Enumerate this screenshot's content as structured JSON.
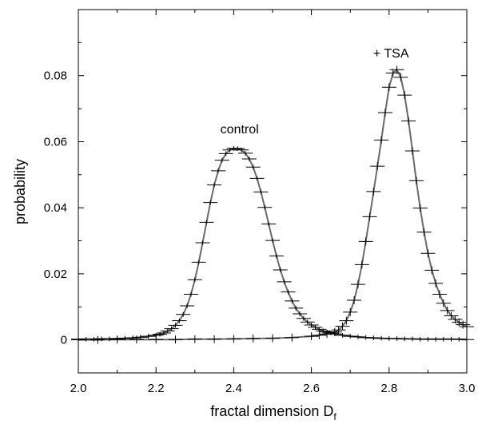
{
  "chart_data": {
    "type": "line",
    "xlabel": "fractal dimension D",
    "xlabel_subscript": "f",
    "ylabel": "probability",
    "xlim": [
      2.0,
      3.0
    ],
    "ylim": [
      -0.01,
      0.1
    ],
    "x_ticks": [
      2.0,
      2.2,
      2.4,
      2.6,
      2.8,
      3.0
    ],
    "x_tick_labels": [
      "2.0",
      "2.2",
      "2.4",
      "2.6",
      "2.8",
      "3.0"
    ],
    "y_ticks": [
      0,
      0.02,
      0.04,
      0.06,
      0.08
    ],
    "y_tick_labels": [
      "0",
      "0.02",
      "0.04",
      "0.06",
      "0.08"
    ],
    "grid": false,
    "fit_color": "#6b6b6b",
    "marker_color": "#000000",
    "annotations": [
      {
        "text": "control",
        "x": 2.415,
        "y": 0.0625
      },
      {
        "text": "+ TSA",
        "x": 2.805,
        "y": 0.0855
      }
    ],
    "series": [
      {
        "name": "control",
        "x": [
          2.0,
          2.02,
          2.04,
          2.06,
          2.08,
          2.1,
          2.12,
          2.14,
          2.16,
          2.18,
          2.2,
          2.21,
          2.22,
          2.23,
          2.24,
          2.25,
          2.26,
          2.27,
          2.28,
          2.29,
          2.3,
          2.31,
          2.32,
          2.33,
          2.34,
          2.35,
          2.36,
          2.37,
          2.38,
          2.39,
          2.4,
          2.41,
          2.42,
          2.43,
          2.44,
          2.45,
          2.46,
          2.47,
          2.48,
          2.49,
          2.5,
          2.51,
          2.52,
          2.53,
          2.54,
          2.55,
          2.56,
          2.57,
          2.58,
          2.59,
          2.6,
          2.61,
          2.62,
          2.63,
          2.64,
          2.65,
          2.66,
          2.68,
          2.7,
          2.72,
          2.74,
          2.76,
          2.78,
          2.8,
          2.82,
          2.84,
          2.86,
          2.88,
          2.9,
          2.92,
          2.94,
          2.96,
          2.98,
          3.0
        ],
        "y": [
          0.0002,
          0.0002,
          0.0002,
          0.0003,
          0.0003,
          0.0004,
          0.0005,
          0.0006,
          0.0008,
          0.0011,
          0.0014,
          0.0017,
          0.0021,
          0.0027,
          0.0034,
          0.0044,
          0.0058,
          0.0077,
          0.0103,
          0.0138,
          0.0182,
          0.0235,
          0.0294,
          0.0356,
          0.0416,
          0.0469,
          0.0512,
          0.0544,
          0.0564,
          0.0575,
          0.058,
          0.0579,
          0.0575,
          0.0565,
          0.0548,
          0.0523,
          0.0489,
          0.0448,
          0.0401,
          0.0351,
          0.0301,
          0.0254,
          0.0212,
          0.0176,
          0.0145,
          0.0118,
          0.0096,
          0.0079,
          0.0065,
          0.0054,
          0.0045,
          0.0038,
          0.0032,
          0.0027,
          0.0024,
          0.0021,
          0.0018,
          0.0014,
          0.0011,
          0.0009,
          0.0007,
          0.0006,
          0.0005,
          0.0004,
          0.0004,
          0.0003,
          0.0003,
          0.0002,
          0.0002,
          0.0002,
          0.0002,
          0.0002,
          0.0002,
          0.0001
        ],
        "yerr": 0.0007
      },
      {
        "name": "+ TSA",
        "x": [
          2.0,
          2.05,
          2.1,
          2.15,
          2.2,
          2.25,
          2.3,
          2.35,
          2.4,
          2.45,
          2.5,
          2.55,
          2.6,
          2.62,
          2.64,
          2.66,
          2.67,
          2.68,
          2.69,
          2.7,
          2.71,
          2.72,
          2.73,
          2.74,
          2.75,
          2.76,
          2.77,
          2.78,
          2.79,
          2.8,
          2.81,
          2.82,
          2.83,
          2.84,
          2.85,
          2.86,
          2.87,
          2.88,
          2.89,
          2.9,
          2.91,
          2.92,
          2.93,
          2.94,
          2.95,
          2.96,
          2.97,
          2.98,
          2.99,
          3.0
        ],
        "y": [
          0.0,
          0.0,
          0.0001,
          0.0001,
          0.0001,
          0.0001,
          0.0002,
          0.0002,
          0.0003,
          0.0004,
          0.0005,
          0.0007,
          0.0011,
          0.0014,
          0.0018,
          0.0024,
          0.003,
          0.0041,
          0.0058,
          0.0084,
          0.012,
          0.0168,
          0.0228,
          0.0298,
          0.0373,
          0.0449,
          0.0526,
          0.0605,
          0.0688,
          0.0765,
          0.0808,
          0.0818,
          0.0795,
          0.0741,
          0.0663,
          0.0572,
          0.0482,
          0.0399,
          0.0326,
          0.0262,
          0.0211,
          0.0171,
          0.0138,
          0.0111,
          0.0089,
          0.0073,
          0.0062,
          0.0053,
          0.0046,
          0.004
        ],
        "yerr": 0.0012
      }
    ]
  }
}
